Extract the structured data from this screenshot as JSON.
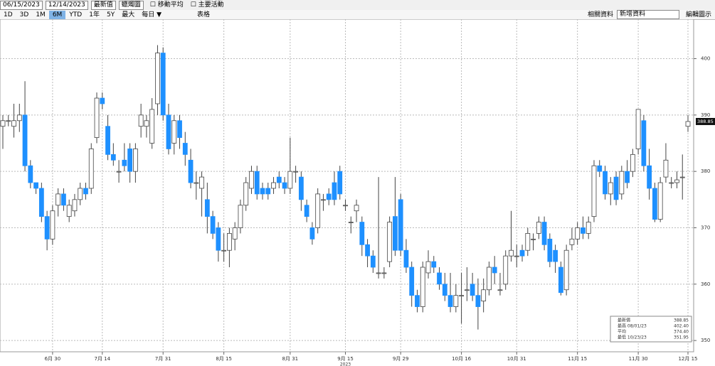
{
  "toolbar": {
    "start_date": "06/15/2023",
    "end_date": "12/14/2023",
    "field": "最新值",
    "style": "蠟燭圖",
    "ma": "移動平均",
    "events": "主要活動",
    "ranges": [
      "1D",
      "3D",
      "1M",
      "6M",
      "YTD",
      "1年",
      "5Y",
      "最大"
    ],
    "freq": "每日 ▼",
    "table": "表格",
    "related": "相關資料",
    "add": "新增資料",
    "edit": "編輯圖示"
  },
  "chart_data": {
    "type": "candlestick",
    "up_color": "#ffffff",
    "down_color": "#1e90ff",
    "year_label": "2023",
    "categories": [
      null,
      null,
      null,
      null,
      null,
      null,
      null,
      null,
      null,
      "6月 30",
      null,
      null,
      null,
      null,
      null,
      null,
      null,
      null,
      "7月 14",
      null,
      null,
      null,
      null,
      null,
      null,
      null,
      null,
      null,
      null,
      "7月 31",
      null,
      null,
      null,
      null,
      null,
      null,
      null,
      null,
      null,
      null,
      "8月 15",
      null,
      null,
      null,
      null,
      null,
      null,
      null,
      null,
      null,
      null,
      null,
      "8月 31",
      null,
      null,
      null,
      null,
      null,
      null,
      null,
      null,
      null,
      "9月 15",
      null,
      null,
      null,
      null,
      null,
      null,
      null,
      null,
      null,
      "9月 29",
      null,
      null,
      null,
      null,
      null,
      null,
      null,
      null,
      null,
      null,
      "10月 16",
      null,
      null,
      null,
      null,
      null,
      null,
      null,
      null,
      null,
      "10月 31",
      null,
      null,
      null,
      null,
      null,
      null,
      null,
      null,
      null,
      null,
      "11月 15",
      null,
      null,
      null,
      null,
      null,
      null,
      null,
      null,
      null,
      null,
      "11月 30",
      null,
      null,
      null,
      null,
      null,
      null,
      null,
      null,
      "12月 15"
    ],
    "open": [
      388,
      389,
      388,
      389,
      390,
      381,
      378,
      377,
      372,
      368,
      374,
      376,
      372,
      373,
      375,
      377,
      377,
      386,
      393,
      388,
      383,
      380,
      382,
      384,
      380,
      388,
      388,
      385,
      392,
      401,
      390,
      385,
      389,
      385,
      382,
      378,
      377,
      375,
      372,
      370,
      366,
      366,
      368,
      370,
      374,
      377,
      380,
      377,
      377,
      377,
      379,
      378,
      377,
      380,
      379,
      374,
      370,
      370,
      375,
      376,
      378,
      380,
      374,
      371,
      373,
      371,
      367,
      365,
      362,
      362,
      364,
      372,
      375,
      366,
      363,
      358,
      356,
      362,
      364,
      362,
      360,
      358,
      356,
      358,
      359,
      360,
      358,
      357,
      359,
      363,
      359,
      360,
      365,
      365,
      366,
      366,
      368,
      369,
      371,
      368,
      366,
      363,
      359,
      367,
      368,
      370,
      369,
      372,
      381,
      380,
      376,
      379,
      376,
      380,
      380,
      384,
      389,
      381,
      377,
      371.5,
      379,
      378,
      378,
      379,
      388
    ],
    "high": [
      390,
      390,
      392,
      392,
      396,
      382,
      378,
      378,
      373,
      374,
      377,
      377,
      375,
      376,
      378,
      378,
      385,
      394,
      394,
      390,
      385,
      382,
      385,
      385,
      385,
      392,
      390,
      393,
      402.4,
      402,
      392,
      390,
      390,
      387,
      384,
      380,
      380,
      378,
      373,
      371,
      369,
      370,
      371,
      375,
      379,
      381,
      381,
      378,
      378,
      379,
      380,
      379,
      386,
      381,
      380,
      375,
      371,
      377,
      376,
      377,
      380,
      381,
      375,
      372,
      375,
      372,
      368,
      366,
      379,
      363,
      372,
      379,
      376,
      368,
      364,
      359,
      364,
      366,
      365,
      363,
      362,
      362,
      360,
      362,
      363,
      362,
      361,
      361,
      364,
      365,
      362,
      366,
      373,
      367,
      367,
      370,
      369,
      372,
      372,
      369,
      367,
      364,
      367,
      370,
      371,
      372,
      372,
      382,
      382,
      381,
      379,
      380,
      381,
      382,
      384,
      391,
      390,
      384,
      378,
      379,
      385,
      379,
      380,
      383,
      390
    ],
    "low": [
      384,
      388,
      386,
      387,
      380,
      377,
      376,
      371,
      366,
      367,
      372,
      373,
      371,
      372,
      374,
      375,
      376,
      385,
      391,
      382,
      381,
      378,
      380,
      378,
      378,
      386,
      386,
      384,
      390,
      389,
      383,
      383,
      384,
      381,
      377,
      375,
      372,
      369,
      368,
      364,
      364,
      363,
      366,
      369,
      373,
      376,
      375,
      375,
      375,
      376,
      377,
      376,
      376,
      378,
      373,
      371,
      367,
      369,
      373,
      374,
      374,
      375,
      373,
      369,
      371,
      365,
      363,
      362,
      361,
      361,
      363,
      365,
      365,
      362,
      356,
      355,
      355,
      361,
      362,
      359,
      357,
      355,
      355,
      353,
      357,
      357,
      351.95,
      355,
      358,
      360,
      358,
      359,
      364,
      363,
      364,
      365,
      366,
      368,
      366,
      363,
      362,
      358,
      358,
      366,
      367,
      368,
      368,
      371,
      379,
      375,
      374,
      374,
      375,
      377,
      379,
      383,
      380,
      375,
      371,
      371,
      378,
      377,
      377,
      375,
      387
    ],
    "close": [
      389,
      389,
      389,
      390,
      381,
      378,
      377,
      372,
      368,
      373,
      376,
      374,
      374,
      375,
      377,
      376,
      384,
      393,
      392,
      383,
      382,
      380,
      381,
      380,
      384,
      390,
      389,
      391,
      401,
      390,
      384,
      389,
      386,
      383,
      378,
      378,
      379,
      372,
      369,
      366,
      366,
      369,
      370,
      374,
      378,
      380,
      376,
      376,
      376,
      378,
      378,
      377,
      380,
      380,
      375,
      372,
      368,
      376,
      375,
      375,
      375,
      376,
      374,
      371,
      374,
      367,
      365,
      363,
      362,
      362,
      371,
      366,
      366,
      363,
      358,
      356,
      363,
      364,
      363,
      360,
      358,
      356,
      358,
      358,
      359,
      358,
      356,
      359,
      363,
      362,
      359,
      365,
      366,
      365,
      365,
      369,
      368,
      371,
      367,
      364,
      364,
      358.5,
      366,
      368,
      370,
      369,
      371,
      381,
      380,
      376,
      378,
      375,
      380,
      378,
      383,
      391,
      381,
      377,
      371.5,
      378,
      382,
      378,
      378.5,
      379,
      388.85
    ],
    "ylim": [
      348,
      407
    ],
    "yticks": [
      350,
      360,
      370,
      380,
      390,
      400
    ],
    "grid": true,
    "legend": [
      {
        "label": "最新價",
        "value": "388.85"
      },
      {
        "label": "最高 08/01/23",
        "value": "402.40"
      },
      {
        "label": "平均",
        "value": "374.40"
      },
      {
        "label": "最低 10/23/23",
        "value": "351.95"
      }
    ]
  }
}
